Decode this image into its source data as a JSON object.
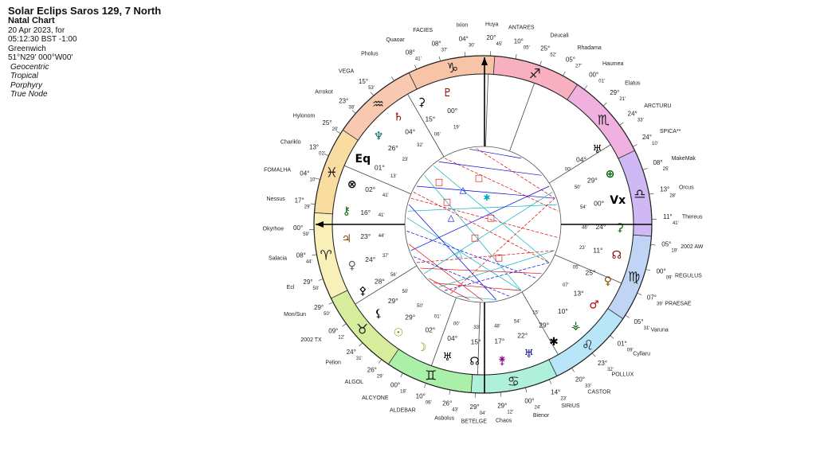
{
  "header": {
    "title": "Solar Eclips Saros 129, 7 North",
    "subtitle": "Natal Chart",
    "date": "20 Apr 2023, for",
    "time": "05:12:30 BST -1:00",
    "place": "Greenwich",
    "coords": "51°N29' 000°W00'",
    "settings": [
      "Geocentric",
      "Tropical",
      "Porphyry",
      "True Node"
    ]
  },
  "colors": {
    "ring_segments": [
      "#f8f0b8",
      "#d6ee9c",
      "#aaf0a8",
      "#aef0da",
      "#b8e6f8",
      "#c0d4f6",
      "#d0b8f4",
      "#f0b0e0",
      "#f8b0c0",
      "#f8c4a8",
      "#f8c8b0",
      "#f8dca0"
    ],
    "aspect_red": "#e00000",
    "aspect_blue": "#0000e0",
    "aspect_cyan": "#00b0c0",
    "aspect_green": "#00a000"
  },
  "signs": [
    "Aries",
    "Taurus",
    "Gemini",
    "Cancer",
    "Leo",
    "Virgo",
    "Libra",
    "Scorpio",
    "Sagittarius",
    "Capricorn",
    "Aquarius",
    "Pisces"
  ],
  "stars": [
    {
      "label": "Ixion",
      "deg": "04°",
      "min": "30'"
    },
    {
      "label": "FACIES",
      "deg": "08°",
      "min": "37'"
    },
    {
      "label": "Quaoar",
      "deg": "08°",
      "min": "41'"
    },
    {
      "label": "Pholus",
      "deg": "",
      "min": ""
    },
    {
      "label": "VEGA",
      "deg": "15°",
      "min": "53'"
    },
    {
      "label": "Arrokot",
      "deg": "23°",
      "min": "38'"
    },
    {
      "label": "Hylonom",
      "deg": "25°",
      "min": "20'"
    },
    {
      "label": "Chariklo",
      "deg": "13°",
      "min": "02'"
    },
    {
      "label": "FOMALHA",
      "deg": "04°",
      "min": "10'"
    },
    {
      "label": "Nessus",
      "deg": "17°",
      "min": "29'"
    },
    {
      "label": "Okyrhoe",
      "deg": "00°",
      "min": "59'"
    },
    {
      "label": "Salacia",
      "deg": "08°",
      "min": "44'"
    },
    {
      "label": "Ecl",
      "deg": "29°",
      "min": "50'"
    },
    {
      "label": "Mon/Sun",
      "deg": "29°",
      "min": "50'"
    },
    {
      "label": "2002 TX",
      "deg": "09°",
      "min": "12'"
    },
    {
      "label": "Pelion",
      "deg": "24°",
      "min": "31'"
    },
    {
      "label": "ALGOL",
      "deg": "26°",
      "min": "29'"
    },
    {
      "label": "ALCYONE",
      "deg": "00°",
      "min": "18'"
    },
    {
      "label": "ALDEBAR",
      "deg": "10°",
      "min": "06'"
    },
    {
      "label": "Asbolus",
      "deg": "26°",
      "min": "43'"
    },
    {
      "label": "BETELGE",
      "deg": "29°",
      "min": "04'"
    },
    {
      "label": "Chaos",
      "deg": "29°",
      "min": "12'"
    },
    {
      "label": "Bienor",
      "deg": "00°",
      "min": "24'"
    },
    {
      "label": "SIRIUS",
      "deg": "14°",
      "min": "23'"
    },
    {
      "label": "CASTOR",
      "deg": "20°",
      "min": "33'"
    },
    {
      "label": "POLLUX",
      "deg": "23°",
      "min": "32'"
    },
    {
      "label": "Cyllaru",
      "deg": "01°",
      "min": "09'"
    },
    {
      "label": "Varuna",
      "deg": "05°",
      "min": "31'"
    },
    {
      "label": "PRAESAE",
      "deg": "07°",
      "min": "39'"
    },
    {
      "label": "REGULUS",
      "deg": "00°",
      "min": "09'"
    },
    {
      "label": "2002 AW",
      "deg": "05°",
      "min": "19'"
    },
    {
      "label": "Thereus",
      "deg": "11°",
      "min": "41'"
    },
    {
      "label": "Orcus",
      "deg": "13°",
      "min": "28'"
    },
    {
      "label": "MakeMak",
      "deg": "08°",
      "min": "25'"
    },
    {
      "label": "SPICA**",
      "deg": "24°",
      "min": "10'"
    },
    {
      "label": "ARCTURU",
      "deg": "24°",
      "min": "33'"
    },
    {
      "label": "Elatus",
      "deg": "29°",
      "min": "21'"
    },
    {
      "label": "Haumea",
      "deg": "00°",
      "min": "01'"
    },
    {
      "label": "Rhadama",
      "deg": "05°",
      "min": "27'"
    },
    {
      "label": "Deucali",
      "deg": "25°",
      "min": "52'"
    },
    {
      "label": "ANTARES",
      "deg": "10°",
      "min": "05'"
    },
    {
      "label": "Huya",
      "deg": "20°",
      "min": "45'"
    }
  ],
  "inner_degrees": [
    {
      "deg": "00°",
      "min": "19'",
      "glyph": "♇"
    },
    {
      "deg": "15°",
      "min": "06'",
      "glyph": "⚳"
    },
    {
      "deg": "04°",
      "min": "32'",
      "glyph": "♄"
    },
    {
      "deg": "26°",
      "min": "23'",
      "glyph": "♆"
    },
    {
      "deg": "01°",
      "min": "13'",
      "glyph": "Eq"
    },
    {
      "deg": "02°",
      "min": "41'",
      "glyph": "⊗"
    },
    {
      "deg": "16°",
      "min": "41'",
      "glyph": "⚷"
    },
    {
      "deg": "23°",
      "min": "44'",
      "glyph": "♃"
    },
    {
      "deg": "24°",
      "min": "37'",
      "glyph": "♀"
    },
    {
      "deg": "28°",
      "min": "56'",
      "glyph": "⚴"
    },
    {
      "deg": "29°",
      "min": "50'",
      "glyph": "⚸"
    },
    {
      "deg": "29°",
      "min": "50'",
      "glyph": "☉"
    },
    {
      "deg": "02°",
      "min": "01'",
      "glyph": "☽"
    },
    {
      "deg": "04°",
      "min": "00'",
      "glyph": "♅"
    },
    {
      "deg": "15°",
      "min": "33'",
      "glyph": "☊"
    },
    {
      "deg": "17°",
      "min": "48'",
      "glyph": "⚵"
    },
    {
      "deg": "22°",
      "min": "54'",
      "glyph": "♅"
    },
    {
      "deg": "29°",
      "min": "15'",
      "glyph": "✱"
    },
    {
      "deg": "10°",
      "min": "",
      "glyph": "⚶"
    },
    {
      "deg": "13°",
      "min": "07'",
      "glyph": "♂"
    },
    {
      "deg": "25°",
      "min": "05'",
      "glyph": "♀"
    },
    {
      "deg": "11°",
      "min": "23'",
      "glyph": "☊"
    },
    {
      "deg": "24°",
      "min": "46'",
      "glyph": "⚳"
    },
    {
      "deg": "00°",
      "min": "54'",
      "glyph": "Vx"
    },
    {
      "deg": "29°",
      "min": "50'",
      "glyph": "⊕"
    },
    {
      "deg": "04°",
      "min": "00'",
      "glyph": "♅"
    }
  ],
  "axis_labels": {
    "asc_glyph": "⊗",
    "mc_glyph": "↑",
    "vertex_glyph": "Vx"
  }
}
